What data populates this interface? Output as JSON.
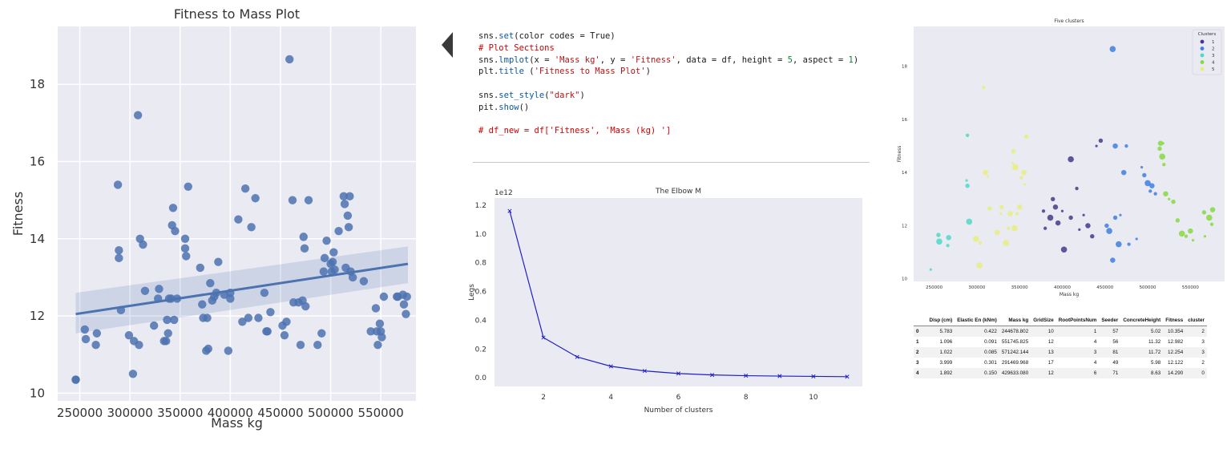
{
  "chart_data": [
    {
      "type": "scatter",
      "title": "Fitness to Mass Plot",
      "xlabel": "Mass kg",
      "ylabel": "Fitness",
      "xlim": [
        228000,
        585000
      ],
      "ylim": [
        9.8,
        19.5
      ],
      "xticks": [
        250000,
        300000,
        350000,
        400000,
        450000,
        500000,
        550000
      ],
      "xtick_labels": [
        "250000",
        "300000",
        "350000",
        "400000",
        "450000",
        "500000",
        "550000"
      ],
      "yticks": [
        10,
        12,
        14,
        16,
        18
      ],
      "ytick_labels": [
        "10",
        "12",
        "14",
        "16",
        "18"
      ],
      "grid": true,
      "style": "darkgrid",
      "point_color": "#4c72b0",
      "regression": {
        "x": [
          246000,
          577000
        ],
        "y": [
          12.05,
          13.35
        ],
        "ci_low": [
          11.55,
          12.85
        ],
        "ci_high": [
          12.6,
          13.8
        ]
      },
      "x": [
        246000,
        246000,
        255000,
        256000,
        266000,
        267000,
        288000,
        289000,
        289000,
        291000,
        299000,
        303000,
        304000,
        308000,
        309000,
        310000,
        313000,
        315000,
        324000,
        328000,
        329000,
        334000,
        336000,
        337000,
        338000,
        339000,
        341000,
        342000,
        343000,
        344000,
        345000,
        347000,
        355000,
        355000,
        356000,
        358000,
        370000,
        372000,
        373000,
        376000,
        377000,
        378000,
        380000,
        382000,
        384000,
        386000,
        388000,
        394000,
        398000,
        400000,
        400000,
        408000,
        412000,
        415000,
        418000,
        421000,
        425000,
        428000,
        434000,
        436000,
        437000,
        440000,
        452000,
        454000,
        456000,
        459000,
        462000,
        463000,
        468000,
        470000,
        472000,
        473000,
        474000,
        475000,
        478000,
        487000,
        491000,
        493000,
        494000,
        496000,
        500000,
        501000,
        502000,
        503000,
        504000,
        508000,
        513000,
        514000,
        515000,
        517000,
        518000,
        519000,
        520000,
        522000,
        533000,
        540000,
        545000,
        546000,
        547000,
        549000,
        550000,
        551000,
        553000,
        566000,
        567000,
        572000,
        573000,
        575000,
        576000
      ],
      "y": [
        10.35,
        10.35,
        11.65,
        11.4,
        11.25,
        11.55,
        15.4,
        13.7,
        13.5,
        12.15,
        11.5,
        10.5,
        11.35,
        17.2,
        11.25,
        14.0,
        13.85,
        12.65,
        11.75,
        12.45,
        12.7,
        11.35,
        11.35,
        11.9,
        11.55,
        12.45,
        12.45,
        14.35,
        14.8,
        11.9,
        14.2,
        12.45,
        14.0,
        13.75,
        13.55,
        15.35,
        13.25,
        12.3,
        11.95,
        11.1,
        11.95,
        11.15,
        12.85,
        12.4,
        12.5,
        12.6,
        13.4,
        12.55,
        11.1,
        12.6,
        12.45,
        14.5,
        11.85,
        15.3,
        11.95,
        14.3,
        15.05,
        11.95,
        12.6,
        11.6,
        11.6,
        12.1,
        11.75,
        11.5,
        11.85,
        18.65,
        15.0,
        12.35,
        12.35,
        11.25,
        12.4,
        14.05,
        13.75,
        12.25,
        15.0,
        11.25,
        11.55,
        13.15,
        13.5,
        13.95,
        13.35,
        13.15,
        13.4,
        13.65,
        13.2,
        14.2,
        15.1,
        14.9,
        13.25,
        14.6,
        14.3,
        15.1,
        13.15,
        13.0,
        12.9,
        11.6,
        12.2,
        11.6,
        11.25,
        11.8,
        11.6,
        11.45,
        12.5,
        12.5,
        12.5,
        12.55,
        12.3,
        12.05,
        12.5
      ]
    },
    {
      "type": "line",
      "title": "The Elbow M",
      "xlabel": "Number of clusters",
      "ylabel": "Legs",
      "offset_text": "1e12",
      "xlim": [
        0.55,
        11.45
      ],
      "ylim": [
        -0.06,
        1.25
      ],
      "xticks": [
        2,
        4,
        6,
        8,
        10
      ],
      "xtick_labels": [
        "2",
        "4",
        "6",
        "8",
        "10"
      ],
      "yticks": [
        0.0,
        0.2,
        0.4,
        0.6,
        0.8,
        1.0,
        1.2
      ],
      "ytick_labels": [
        "0.0",
        "0.2",
        "0.4",
        "0.6",
        "0.8",
        "1.0",
        "1.2"
      ],
      "line_color": "#1f1fc8",
      "x": [
        1,
        2,
        3,
        4,
        5,
        6,
        7,
        8,
        9,
        10,
        11
      ],
      "y": [
        1.16,
        0.28,
        0.145,
        0.08,
        0.048,
        0.03,
        0.02,
        0.015,
        0.012,
        0.01,
        0.008
      ]
    },
    {
      "type": "scatter",
      "title": "Five clusters",
      "xlabel": "Mass kg",
      "ylabel": "Fitness",
      "xlim": [
        226000,
        590000
      ],
      "ylim": [
        9.9,
        19.5
      ],
      "xticks": [
        250000,
        300000,
        350000,
        400000,
        450000,
        500000,
        550000
      ],
      "xtick_labels": [
        "250000",
        "300000",
        "350000",
        "400000",
        "450000",
        "500000",
        "550000"
      ],
      "yticks": [
        10,
        12,
        14,
        16,
        18
      ],
      "ytick_labels": [
        "10",
        "12",
        "14",
        "16",
        "18"
      ],
      "legend_title": "Clusters",
      "legend_position": "top-right",
      "legend": [
        {
          "label": "1",
          "color": "#44398a"
        },
        {
          "label": "2",
          "color": "#3e7fe0"
        },
        {
          "label": "3",
          "color": "#4fd8c8"
        },
        {
          "label": "4",
          "color": "#86d941"
        },
        {
          "label": "5",
          "color": "#e6ee7c"
        }
      ],
      "points": [
        {
          "x": 440000,
          "y": 15.0,
          "c": 1
        },
        {
          "x": 445000,
          "y": 15.2,
          "c": 1
        },
        {
          "x": 410000,
          "y": 14.5,
          "c": 1
        },
        {
          "x": 417000,
          "y": 13.4,
          "c": 1
        },
        {
          "x": 392000,
          "y": 12.7,
          "c": 1
        },
        {
          "x": 400000,
          "y": 12.55,
          "c": 1
        },
        {
          "x": 410000,
          "y": 12.3,
          "c": 1
        },
        {
          "x": 386000,
          "y": 12.3,
          "c": 1
        },
        {
          "x": 380000,
          "y": 11.9,
          "c": 1
        },
        {
          "x": 430000,
          "y": 12.0,
          "c": 1
        },
        {
          "x": 420000,
          "y": 11.85,
          "c": 1
        },
        {
          "x": 435000,
          "y": 11.6,
          "c": 1
        },
        {
          "x": 402000,
          "y": 11.1,
          "c": 1
        },
        {
          "x": 378000,
          "y": 12.55,
          "c": 1
        },
        {
          "x": 395000,
          "y": 12.1,
          "c": 1
        },
        {
          "x": 425000,
          "y": 12.4,
          "c": 1
        },
        {
          "x": 389000,
          "y": 13.0,
          "c": 1
        },
        {
          "x": 459000,
          "y": 18.65,
          "c": 2
        },
        {
          "x": 475000,
          "y": 15.0,
          "c": 2
        },
        {
          "x": 462000,
          "y": 15.0,
          "c": 2
        },
        {
          "x": 493000,
          "y": 14.2,
          "c": 2
        },
        {
          "x": 496000,
          "y": 13.9,
          "c": 2
        },
        {
          "x": 500000,
          "y": 13.6,
          "c": 2
        },
        {
          "x": 503000,
          "y": 13.3,
          "c": 2
        },
        {
          "x": 472000,
          "y": 14.0,
          "c": 2
        },
        {
          "x": 468000,
          "y": 12.4,
          "c": 2
        },
        {
          "x": 462000,
          "y": 12.3,
          "c": 2
        },
        {
          "x": 455000,
          "y": 11.8,
          "c": 2
        },
        {
          "x": 478000,
          "y": 11.3,
          "c": 2
        },
        {
          "x": 459000,
          "y": 10.7,
          "c": 2
        },
        {
          "x": 487000,
          "y": 11.5,
          "c": 2
        },
        {
          "x": 452000,
          "y": 12.0,
          "c": 2
        },
        {
          "x": 466000,
          "y": 11.3,
          "c": 2
        },
        {
          "x": 509000,
          "y": 13.2,
          "c": 2
        },
        {
          "x": 505000,
          "y": 13.5,
          "c": 2
        },
        {
          "x": 246000,
          "y": 10.35,
          "c": 3
        },
        {
          "x": 255000,
          "y": 11.65,
          "c": 3
        },
        {
          "x": 256000,
          "y": 11.4,
          "c": 3
        },
        {
          "x": 266000,
          "y": 11.25,
          "c": 3
        },
        {
          "x": 267000,
          "y": 11.55,
          "c": 3
        },
        {
          "x": 288000,
          "y": 13.7,
          "c": 3
        },
        {
          "x": 289000,
          "y": 13.5,
          "c": 3
        },
        {
          "x": 291000,
          "y": 12.15,
          "c": 3
        },
        {
          "x": 289000,
          "y": 15.4,
          "c": 3
        },
        {
          "x": 515000,
          "y": 15.1,
          "c": 4
        },
        {
          "x": 518000,
          "y": 15.1,
          "c": 4
        },
        {
          "x": 514000,
          "y": 14.9,
          "c": 4
        },
        {
          "x": 517000,
          "y": 14.6,
          "c": 4
        },
        {
          "x": 519000,
          "y": 14.3,
          "c": 4
        },
        {
          "x": 521000,
          "y": 13.2,
          "c": 4
        },
        {
          "x": 525000,
          "y": 13.0,
          "c": 4
        },
        {
          "x": 530000,
          "y": 12.9,
          "c": 4
        },
        {
          "x": 540000,
          "y": 11.7,
          "c": 4
        },
        {
          "x": 545000,
          "y": 11.6,
          "c": 4
        },
        {
          "x": 550000,
          "y": 11.8,
          "c": 4
        },
        {
          "x": 553000,
          "y": 11.45,
          "c": 4
        },
        {
          "x": 566000,
          "y": 12.5,
          "c": 4
        },
        {
          "x": 572000,
          "y": 12.3,
          "c": 4
        },
        {
          "x": 575000,
          "y": 12.05,
          "c": 4
        },
        {
          "x": 576000,
          "y": 12.6,
          "c": 4
        },
        {
          "x": 567000,
          "y": 11.6,
          "c": 4
        },
        {
          "x": 535000,
          "y": 12.2,
          "c": 4
        },
        {
          "x": 303000,
          "y": 10.5,
          "c": 5
        },
        {
          "x": 308000,
          "y": 17.2,
          "c": 5
        },
        {
          "x": 310000,
          "y": 14.0,
          "c": 5
        },
        {
          "x": 313000,
          "y": 13.85,
          "c": 5
        },
        {
          "x": 315000,
          "y": 12.65,
          "c": 5
        },
        {
          "x": 299000,
          "y": 11.5,
          "c": 5
        },
        {
          "x": 304000,
          "y": 11.35,
          "c": 5
        },
        {
          "x": 324000,
          "y": 11.75,
          "c": 5
        },
        {
          "x": 328000,
          "y": 12.45,
          "c": 5
        },
        {
          "x": 329000,
          "y": 12.7,
          "c": 5
        },
        {
          "x": 334000,
          "y": 11.35,
          "c": 5
        },
        {
          "x": 337000,
          "y": 11.9,
          "c": 5
        },
        {
          "x": 339000,
          "y": 12.45,
          "c": 5
        },
        {
          "x": 342000,
          "y": 14.35,
          "c": 5
        },
        {
          "x": 343000,
          "y": 14.8,
          "c": 5
        },
        {
          "x": 345000,
          "y": 14.2,
          "c": 5
        },
        {
          "x": 347000,
          "y": 12.45,
          "c": 5
        },
        {
          "x": 355000,
          "y": 14.0,
          "c": 5
        },
        {
          "x": 356000,
          "y": 13.55,
          "c": 5
        },
        {
          "x": 358000,
          "y": 15.35,
          "c": 5
        },
        {
          "x": 344000,
          "y": 11.9,
          "c": 5
        },
        {
          "x": 352000,
          "y": 13.8,
          "c": 5
        },
        {
          "x": 350000,
          "y": 12.7,
          "c": 5
        }
      ]
    }
  ],
  "code_lines": [
    [
      {
        "t": "sns.",
        "c": ""
      },
      {
        "t": "set",
        "c": "kw"
      },
      {
        "t": "(color codes = True)",
        "c": ""
      }
    ],
    [
      {
        "t": "# Plot Sections",
        "c": "cmt"
      }
    ],
    [
      {
        "t": "sns.",
        "c": ""
      },
      {
        "t": "lmplot",
        "c": "kw"
      },
      {
        "t": "(x = ",
        "c": ""
      },
      {
        "t": "'Mass kg'",
        "c": "str"
      },
      {
        "t": ", y = ",
        "c": ""
      },
      {
        "t": "'Fitness'",
        "c": "str"
      },
      {
        "t": ", data = df, height = ",
        "c": ""
      },
      {
        "t": "5",
        "c": "num"
      },
      {
        "t": ", aspect = ",
        "c": ""
      },
      {
        "t": "1",
        "c": "num"
      },
      {
        "t": ")",
        "c": ""
      }
    ],
    [
      {
        "t": "plt.",
        "c": ""
      },
      {
        "t": "title",
        "c": "kw"
      },
      {
        "t": " (",
        "c": ""
      },
      {
        "t": "'Fitness to Mass Plot'",
        "c": "str"
      },
      {
        "t": ")",
        "c": ""
      }
    ],
    [
      {
        "t": "",
        "c": ""
      }
    ],
    [
      {
        "t": "sns.",
        "c": ""
      },
      {
        "t": "set_style",
        "c": "kw"
      },
      {
        "t": "(",
        "c": ""
      },
      {
        "t": "\"dark\"",
        "c": "str"
      },
      {
        "t": ")",
        "c": ""
      }
    ],
    [
      {
        "t": "pit.",
        "c": ""
      },
      {
        "t": "show",
        "c": "kw"
      },
      {
        "t": "()",
        "c": ""
      }
    ],
    [
      {
        "t": "",
        "c": ""
      }
    ],
    [
      {
        "t": "# df_new = df['Fitness', 'Mass (kg) ']",
        "c": "cmt"
      }
    ]
  ],
  "table": {
    "columns": [
      "",
      "Disp (cm)",
      "Elastic En (kNm)",
      "Mass kg",
      "GridSize",
      "RootPointsNum",
      "Seeder",
      "ConcreteHeight",
      "Fitness",
      "cluster"
    ],
    "rows": [
      [
        "0",
        "5.783",
        "0.422",
        "244678.802",
        "10",
        "1",
        "57",
        "5.02",
        "10.354",
        "2"
      ],
      [
        "1",
        "1.096",
        "0.091",
        "551745.825",
        "12",
        "4",
        "56",
        "11.32",
        "12.982",
        "3"
      ],
      [
        "2",
        "1.022",
        "0.085",
        "571242.144",
        "13",
        "3",
        "81",
        "11.72",
        "12.254",
        "3"
      ],
      [
        "3",
        "3.999",
        "0.301",
        "291469.968",
        "17",
        "4",
        "49",
        "5.98",
        "12.122",
        "2"
      ],
      [
        "4",
        "1.892",
        "0.150",
        "429633.080",
        "12",
        "6",
        "71",
        "8.63",
        "14.290",
        "0"
      ]
    ]
  }
}
